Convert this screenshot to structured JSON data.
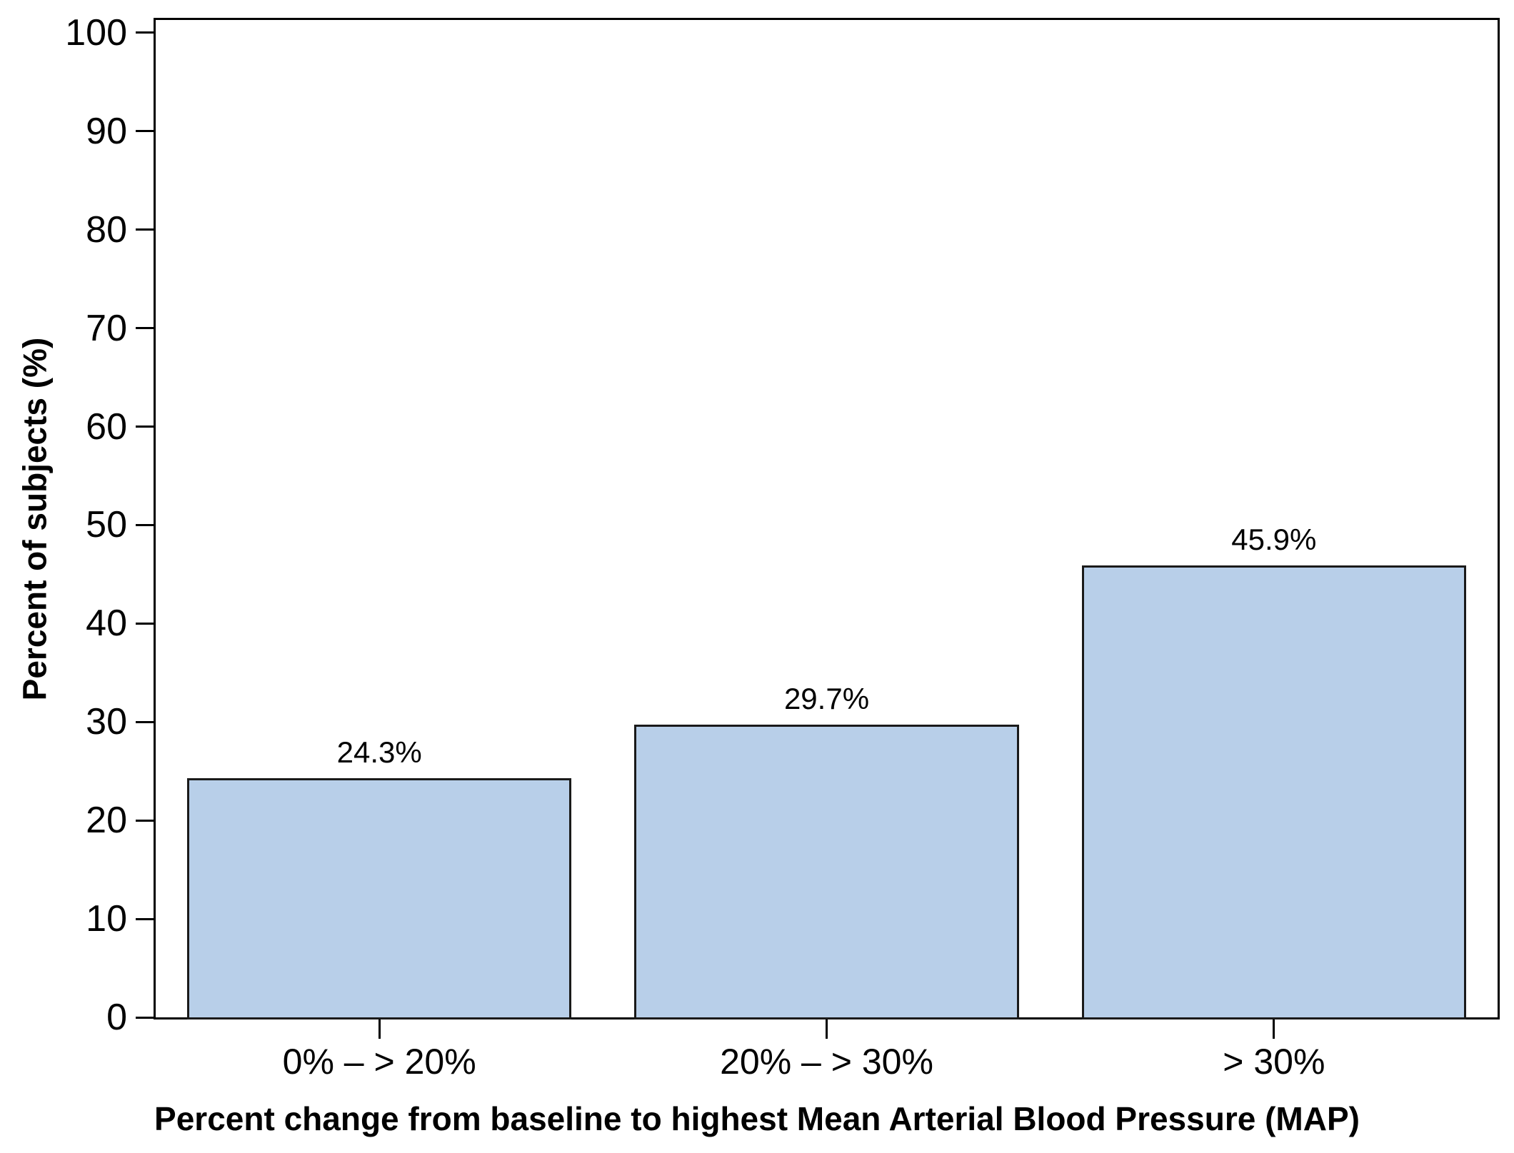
{
  "chart_data": {
    "type": "bar",
    "title": "",
    "categories": [
      "0% – > 20%",
      "20% – > 30%",
      "> 30%"
    ],
    "values": [
      24.3,
      29.7,
      45.9
    ],
    "bar_labels": [
      "24.3%",
      "29.7%",
      "45.9%"
    ],
    "xlabel": "Percent change from baseline to highest Mean Arterial Blood Pressure (MAP)",
    "ylabel": "Percent of subjects (%)",
    "ylim": [
      0,
      100
    ],
    "yticks": [
      0,
      10,
      20,
      30,
      40,
      50,
      60,
      70,
      80,
      90,
      100
    ],
    "grid": false,
    "legend": false,
    "bar_fill_color": "#B8CFE9",
    "bar_border_color": "#1A1A1A",
    "axis_color": "#000000",
    "background_color": "#FFFFFF"
  }
}
